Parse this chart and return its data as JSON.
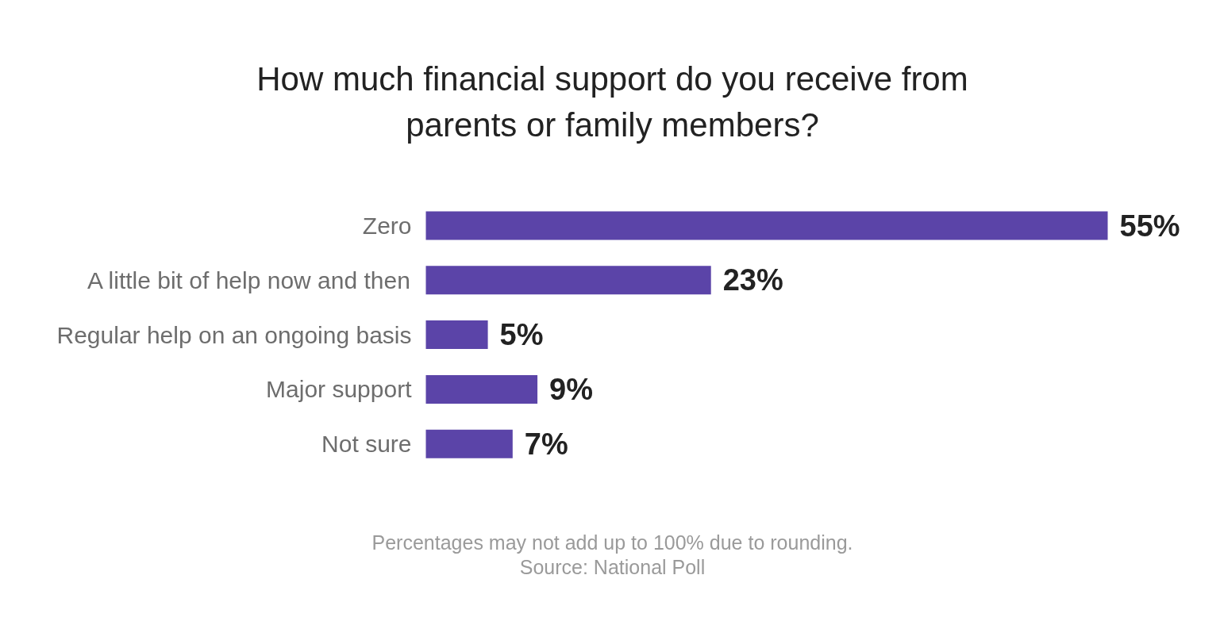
{
  "chart_data": {
    "type": "bar",
    "orientation": "horizontal",
    "title": "How much financial support do you receive from\nparents or family members?",
    "categories": [
      "Zero",
      "A little bit of help now and then",
      "Regular help on an ongoing basis",
      "Major support",
      "Not sure"
    ],
    "values": [
      55,
      23,
      5,
      9,
      7
    ],
    "value_labels": [
      "55%",
      "23%",
      "5%",
      "9%",
      "7%"
    ],
    "color": "#5b44a8",
    "annotations": [
      "Percentages may not add up to 100% due to rounding.",
      "Source: National Poll"
    ]
  }
}
